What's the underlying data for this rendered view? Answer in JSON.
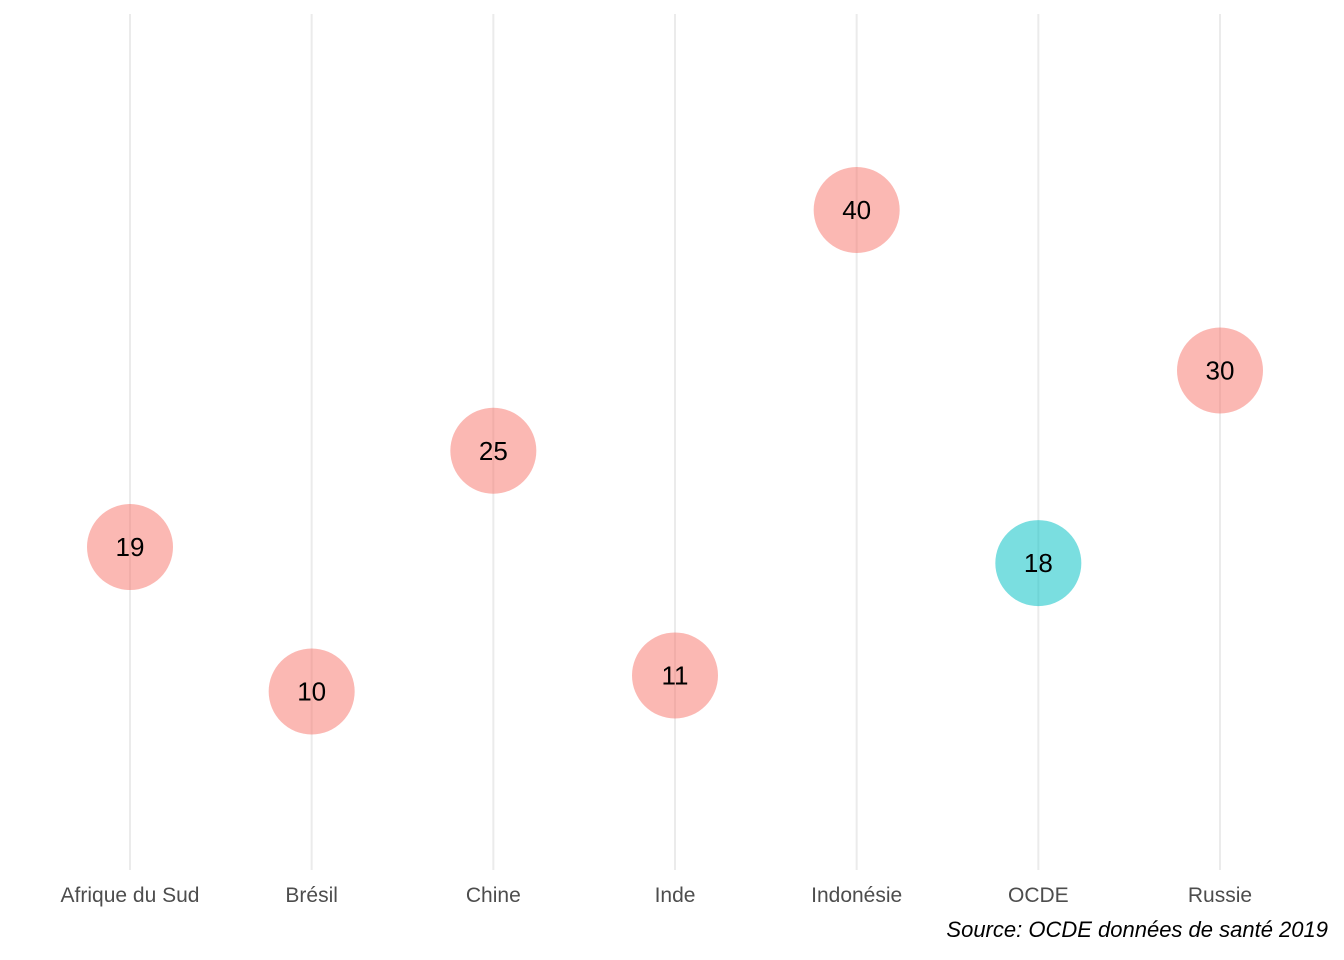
{
  "chart_data": {
    "type": "scatter",
    "title": "",
    "xlabel": "",
    "ylabel": "",
    "categories": [
      "Afrique du Sud",
      "Brésil",
      "Chine",
      "Inde",
      "Indonésie",
      "OCDE",
      "Russie"
    ],
    "values": [
      19,
      10,
      25,
      11,
      40,
      18,
      30
    ],
    "ylim": [
      0,
      50
    ],
    "grid": "vertical",
    "legend": "none",
    "colors": {
      "default": "#F8766D",
      "highlight": "#00BFC4",
      "highlight_category": "OCDE"
    },
    "caption": "Source: OCDE données de santé 2019"
  }
}
